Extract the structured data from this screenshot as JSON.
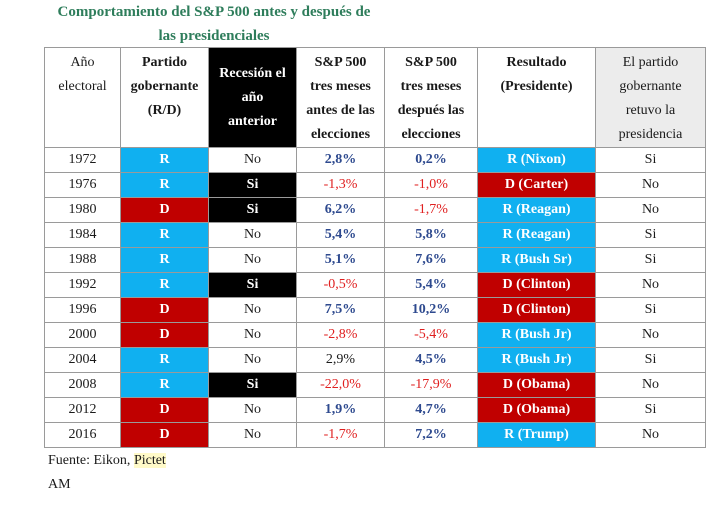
{
  "title_line1": "Comportamiento del S&P 500 antes y después de",
  "title_line2": "las presidenciales",
  "headers": [
    {
      "lines": [
        "Año",
        "electoral"
      ]
    },
    {
      "lines": [
        "Partido",
        "gobernante",
        "(R/D)"
      ]
    },
    {
      "lines": [
        "Recesión el",
        "año",
        "anterior"
      ]
    },
    {
      "lines": [
        "S&P 500",
        "tres meses",
        "antes de las",
        "elecciones"
      ]
    },
    {
      "lines": [
        "S&P 500",
        "tres meses",
        "después las",
        "elecciones"
      ]
    },
    {
      "lines": [
        "Resultado",
        "(Presidente)"
      ]
    },
    {
      "lines": [
        "El partido",
        "gobernante",
        "retuvo la",
        "presidencia"
      ]
    }
  ],
  "rows": [
    {
      "year": "1972",
      "party": "R",
      "recession": "No",
      "before": "2,8%",
      "after": "0,2%",
      "result": "R (Nixon)",
      "retained": "Si"
    },
    {
      "year": "1976",
      "party": "R",
      "recession": "Si",
      "before": "-1,3%",
      "after": "-1,0%",
      "result": "D (Carter)",
      "retained": "No"
    },
    {
      "year": "1980",
      "party": "D",
      "recession": "Si",
      "before": "6,2%",
      "after": "-1,7%",
      "result": "R (Reagan)",
      "retained": "No"
    },
    {
      "year": "1984",
      "party": "R",
      "recession": "No",
      "before": "5,4%",
      "after": "5,8%",
      "result": "R (Reagan)",
      "retained": "Si"
    },
    {
      "year": "1988",
      "party": "R",
      "recession": "No",
      "before": "5,1%",
      "after": "7,6%",
      "result": "R (Bush Sr)",
      "retained": "Si"
    },
    {
      "year": "1992",
      "party": "R",
      "recession": "Si",
      "before": "-0,5%",
      "after": "5,4%",
      "result": "D (Clinton)",
      "retained": "No"
    },
    {
      "year": "1996",
      "party": "D",
      "recession": "No",
      "before": "7,5%",
      "after": "10,2%",
      "result": "D (Clinton)",
      "retained": "Si"
    },
    {
      "year": "2000",
      "party": "D",
      "recession": "No",
      "before": "-2,8%",
      "after": "-5,4%",
      "result": "R (Bush Jr)",
      "retained": "No"
    },
    {
      "year": "2004",
      "party": "R",
      "recession": "No",
      "before": "2,9%",
      "after": "4,5%",
      "result": "R (Bush Jr)",
      "retained": "Si"
    },
    {
      "year": "2008",
      "party": "R",
      "recession": "Si",
      "before": "-22,0%",
      "after": "-17,9%",
      "result": "D (Obama)",
      "retained": "No"
    },
    {
      "year": "2012",
      "party": "D",
      "recession": "No",
      "before": "1,9%",
      "after": "4,7%",
      "result": "D (Obama)",
      "retained": "Si"
    },
    {
      "year": "2016",
      "party": "D",
      "recession": "No",
      "before": "-1,7%",
      "after": "7,2%",
      "result": "R (Trump)",
      "retained": "No"
    }
  ],
  "source_label": "Fuente: Eikon, ",
  "source_highlight": "Pictet",
  "footer_extra": "AM",
  "colors": {
    "title": "#2e7d5b",
    "republican": "#10b0f0",
    "democrat": "#c00000",
    "recession": "#000000",
    "positive_text": "#2e4a8f",
    "negative_text": "#e02020",
    "highlight": "#fffac8"
  }
}
